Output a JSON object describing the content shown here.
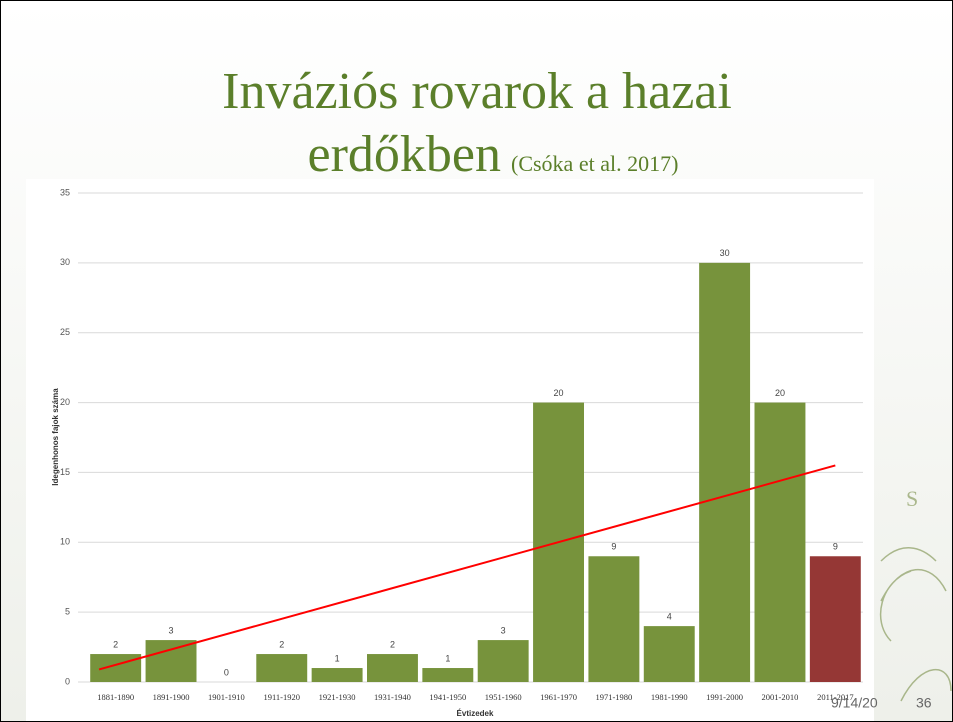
{
  "title": {
    "line1": "Inváziós rovarok a hazai",
    "line2": "erdőkben",
    "citation": "(Csóka et al. 2017)"
  },
  "chart_data": {
    "type": "bar",
    "x_label": "Évtizedek",
    "y_label": "Idegenhonos fajok száma",
    "categories": [
      "1881-1890",
      "1891-1900",
      "1901-1910",
      "1911-1920",
      "1921-1930",
      "1931-1940",
      "1941-1950",
      "1951-1960",
      "1961-1970",
      "1971-1980",
      "1981-1990",
      "1991-2000",
      "2001-2010",
      "2011-2017"
    ],
    "values": [
      2,
      3,
      0,
      2,
      1,
      2,
      1,
      3,
      20,
      9,
      4,
      30,
      20,
      9
    ],
    "colors": [
      "#77933c",
      "#77933c",
      "#77933c",
      "#77933c",
      "#77933c",
      "#77933c",
      "#77933c",
      "#77933c",
      "#77933c",
      "#77933c",
      "#77933c",
      "#77933c",
      "#77933c",
      "#953735"
    ],
    "ylim": [
      0,
      35
    ],
    "yticks": [
      0,
      5,
      10,
      15,
      20,
      25,
      30,
      35
    ],
    "grid": true,
    "trendline": {
      "color": "#ff0000",
      "start": 0.9,
      "end": 15.5
    }
  },
  "footer": {
    "date": "9/14/20",
    "page": "36"
  }
}
